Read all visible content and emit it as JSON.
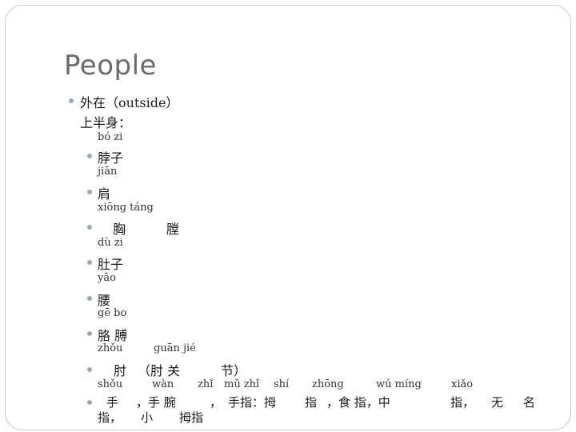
{
  "slide": {
    "title": "People",
    "section": "外在（outside）",
    "subsection": "上半身：",
    "items": [
      {
        "pinyin": "bó zi",
        "hanzi": "脖子"
      },
      {
        "pinyin": "jiān",
        "hanzi": "肩"
      },
      {
        "pinyin": "xiōng táng",
        "hanzi_a": "胸",
        "hanzi_b": "膛"
      },
      {
        "pinyin": "dù zi",
        "hanzi": "肚子"
      },
      {
        "pinyin": "yāo",
        "hanzi": "腰"
      },
      {
        "pinyin": "gē bo",
        "hanzi": "胳 膊"
      },
      {
        "pinyin_a": "zhǒu",
        "pinyin_b": "guān  jié",
        "hanzi_a": "肘",
        "hanzi_b": "（肘 关",
        "hanzi_c": "节）"
      },
      {
        "pinyin": [
          "shǒu",
          "wàn",
          "zhǐ",
          "mǔ zhǐ",
          "shí",
          "zhōng",
          "wú míng",
          "xiǎo"
        ],
        "hanzi": [
          "手",
          "，手 腕",
          "，",
          "手指：拇",
          "指",
          "，食 指，中",
          "指，",
          "无",
          "名"
        ],
        "hanzi_line2": [
          "指，",
          "小",
          "拇指"
        ]
      }
    ]
  }
}
